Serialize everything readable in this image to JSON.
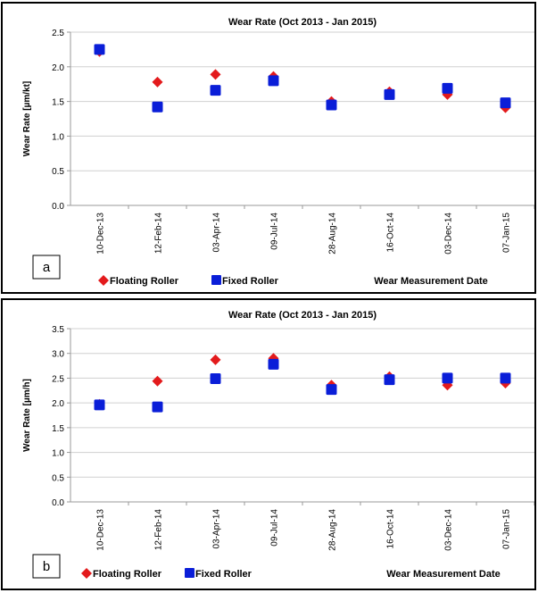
{
  "colors": {
    "floating": "#e31a1c",
    "fixed": "#0a1ed8",
    "grid": "#d0d0d0",
    "axis": "#9a9a9a"
  },
  "chart_data": [
    {
      "type": "scatter",
      "panel_label": "a",
      "title": "Wear Rate  (Oct 2013 - Jan 2015)",
      "xlabel": "Wear Measurement Date",
      "ylabel": "Wear Rate [µm/kt]",
      "ylim": [
        0,
        2.5
      ],
      "yticks": [
        "0.0",
        "0.5",
        "1.0",
        "1.5",
        "2.0",
        "2.5"
      ],
      "categories": [
        "10-Dec-13",
        "12-Feb-14",
        "03-Apr-14",
        "09-Jul-14",
        "28-Aug-14",
        "16-Oct-14",
        "03-Dec-14",
        "07-Jan-15"
      ],
      "series": [
        {
          "name": "Floating Roller",
          "marker": "diamond",
          "values": [
            2.22,
            1.78,
            1.89,
            1.86,
            1.5,
            1.64,
            1.6,
            1.41
          ]
        },
        {
          "name": "Fixed Roller",
          "marker": "square",
          "values": [
            2.25,
            1.42,
            1.66,
            1.8,
            1.45,
            1.6,
            1.69,
            1.48
          ]
        }
      ],
      "grid": true,
      "legend": "bottom-left"
    },
    {
      "type": "scatter",
      "panel_label": "b",
      "title": "Wear Rate (Oct 2013 - Jan 2015)",
      "xlabel": "Wear Measurement Date",
      "ylabel": "Wear Rate [µm/h]",
      "ylim": [
        0,
        3.5
      ],
      "yticks": [
        "0.0",
        "0.5",
        "1.0",
        "1.5",
        "2.0",
        "2.5",
        "3.0",
        "3.5"
      ],
      "categories": [
        "10-Dec-13",
        "12-Feb-14",
        "03-Apr-14",
        "09-Jul-14",
        "28-Aug-14",
        "16-Oct-14",
        "03-Dec-14",
        "07-Jan-15"
      ],
      "series": [
        {
          "name": "Floating Roller",
          "marker": "diamond",
          "values": [
            1.97,
            2.44,
            2.87,
            2.9,
            2.36,
            2.53,
            2.36,
            2.4
          ]
        },
        {
          "name": "Fixed Roller",
          "marker": "square",
          "values": [
            1.96,
            1.92,
            2.49,
            2.78,
            2.27,
            2.47,
            2.5,
            2.5
          ]
        }
      ],
      "grid": true,
      "legend": "bottom-left"
    }
  ]
}
